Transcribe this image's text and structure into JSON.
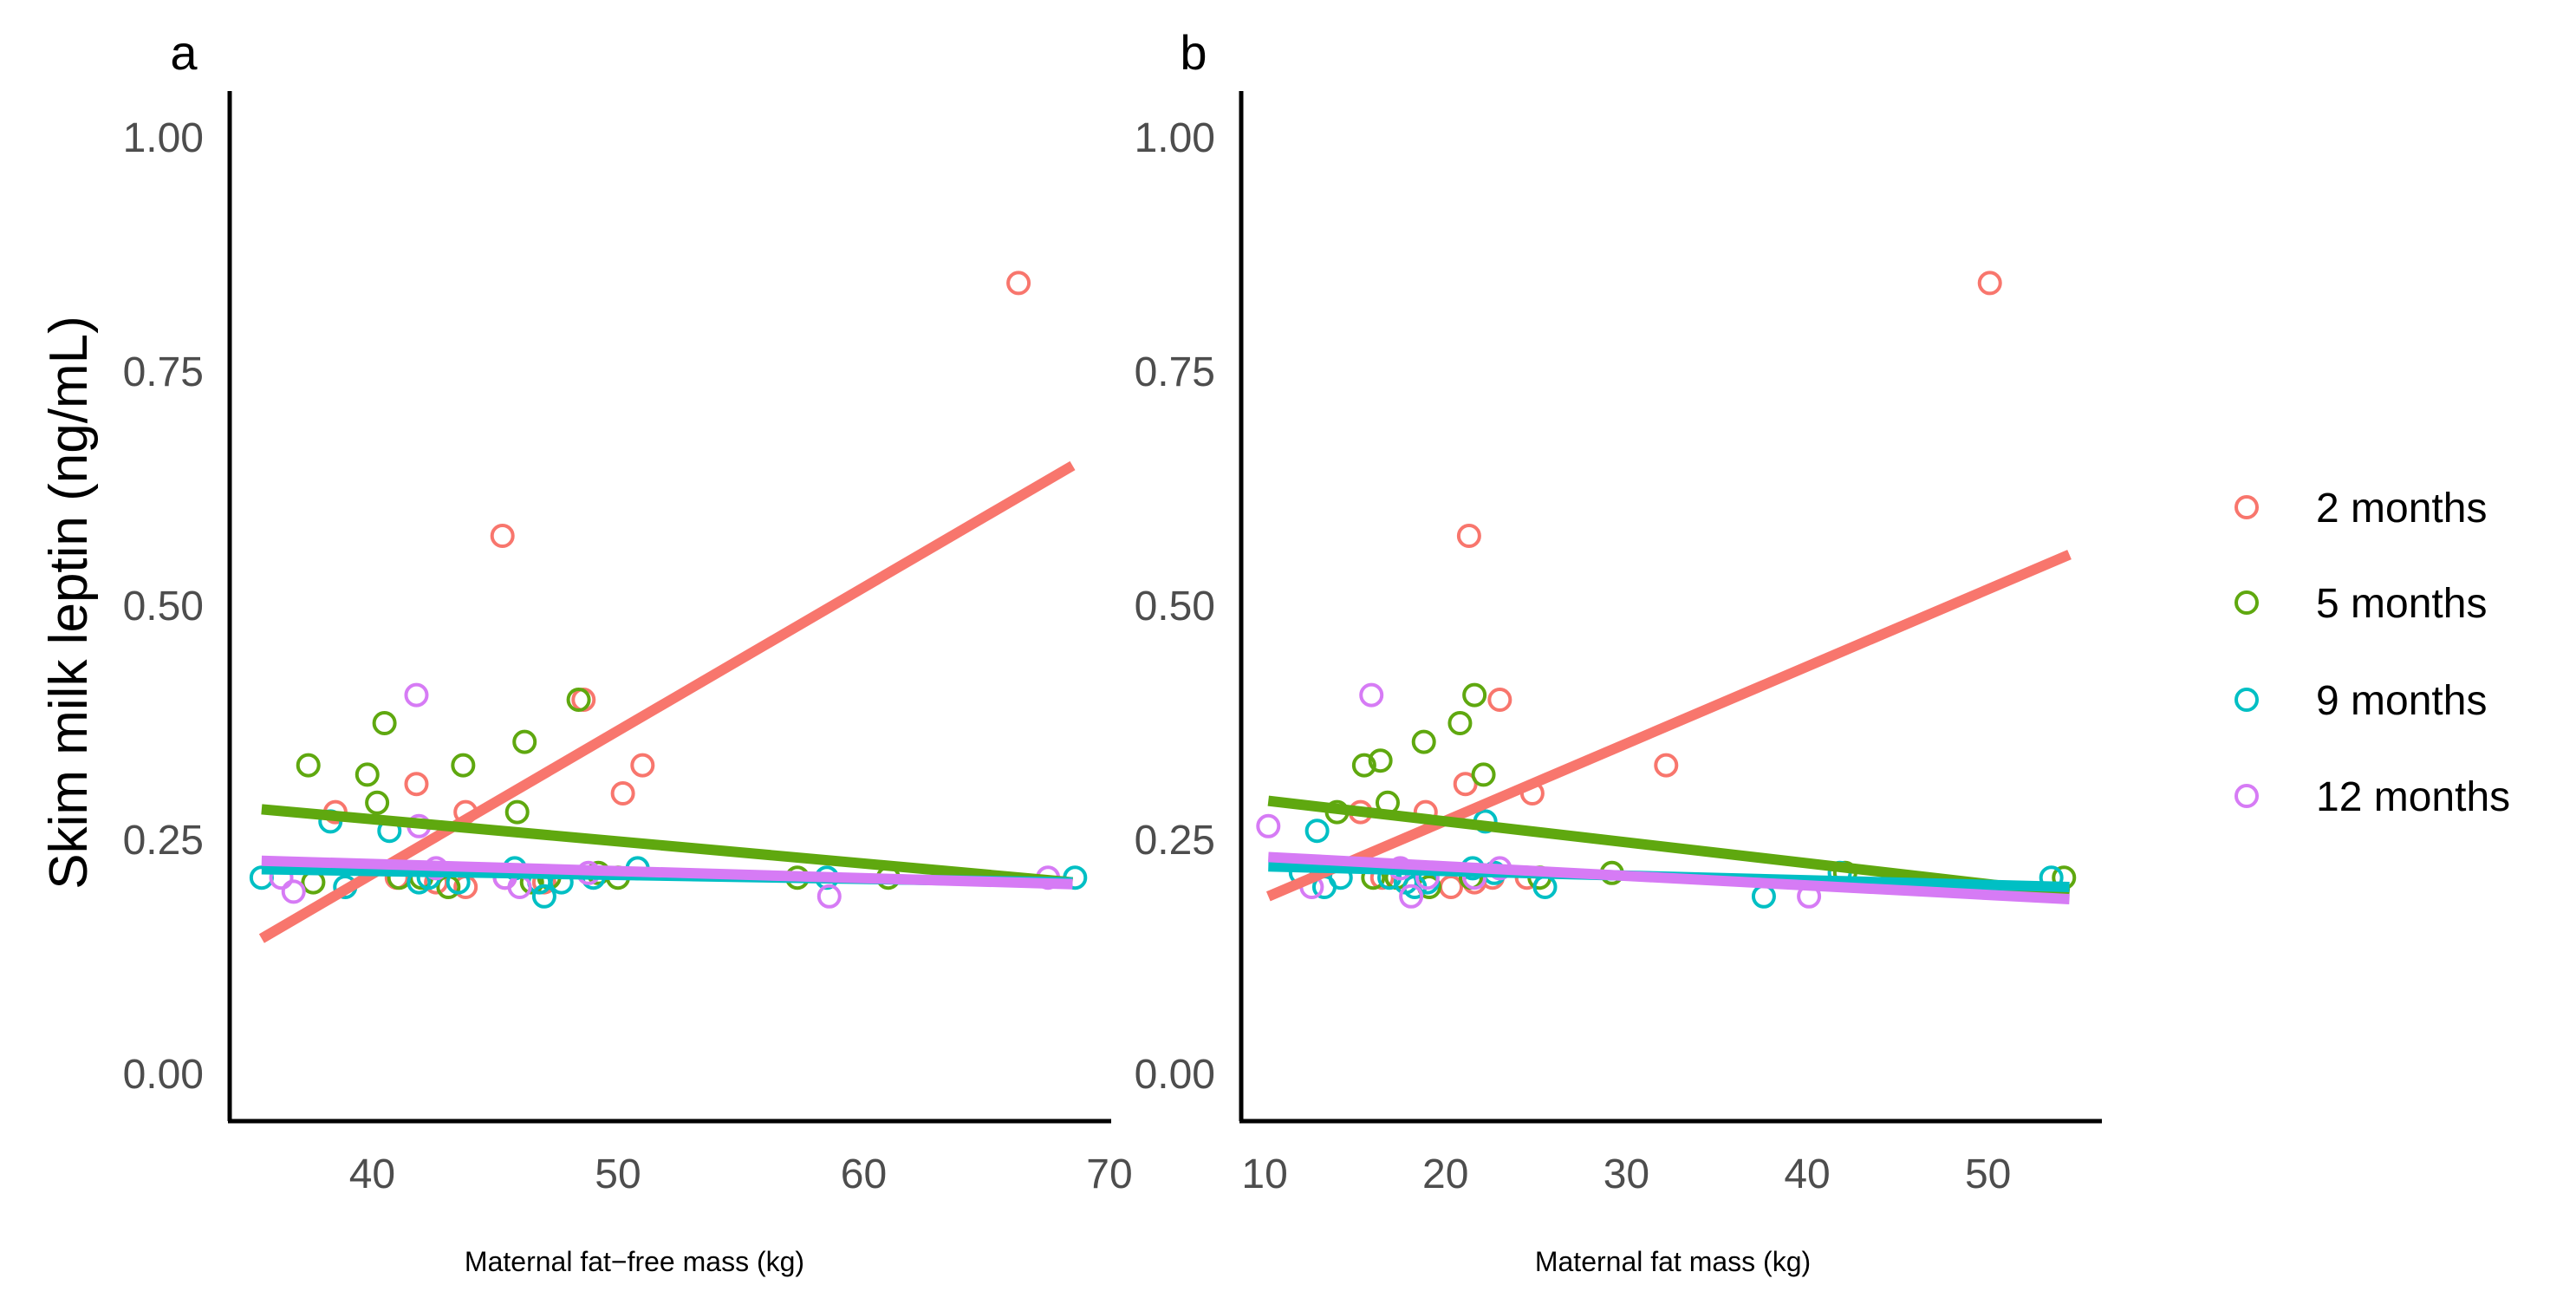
{
  "y_axis_label": "Skim milk leptin (ng/mL)",
  "legend": [
    {
      "label": "2 months",
      "color": "#F8766D"
    },
    {
      "label": "5 months",
      "color": "#5FA80F"
    },
    {
      "label": "9 months",
      "color": "#00BFC4"
    },
    {
      "label": "12 months",
      "color": "#D67BF5"
    }
  ],
  "chart_data": [
    {
      "type": "scatter",
      "panel_label": "a",
      "xlabel": "Maternal fat−free mass (kg)",
      "ylabel": "Skim milk leptin (ng/mL)",
      "xlim": [
        34.2,
        70
      ],
      "ylim": [
        -0.05,
        1.05
      ],
      "xticks": [
        40,
        50,
        60,
        70
      ],
      "yticks": [
        0,
        0.25,
        0.5,
        0.75,
        1.0
      ],
      "series": [
        {
          "name": "2 months",
          "points": [
            [
              38.5,
              0.28
            ],
            [
              41.8,
              0.31
            ],
            [
              43.8,
              0.28
            ],
            [
              45.3,
              0.575
            ],
            [
              48.6,
              0.4
            ],
            [
              50.2,
              0.3
            ],
            [
              51.0,
              0.33
            ],
            [
              66.3,
              0.845
            ],
            [
              41.0,
              0.21
            ],
            [
              42.6,
              0.205
            ],
            [
              43.8,
              0.2
            ],
            [
              45.4,
              0.21
            ],
            [
              47.0,
              0.205
            ]
          ],
          "trend": [
            [
              35.5,
              0.145
            ],
            [
              68.5,
              0.65
            ]
          ]
        },
        {
          "name": "5 months",
          "points": [
            [
              37.4,
              0.33
            ],
            [
              37.6,
              0.205
            ],
            [
              39.8,
              0.32
            ],
            [
              40.2,
              0.29
            ],
            [
              40.5,
              0.375
            ],
            [
              41.1,
              0.21
            ],
            [
              42.0,
              0.21
            ],
            [
              43.1,
              0.2
            ],
            [
              43.7,
              0.33
            ],
            [
              45.9,
              0.28
            ],
            [
              46.2,
              0.355
            ],
            [
              46.5,
              0.205
            ],
            [
              47.2,
              0.21
            ],
            [
              48.4,
              0.4
            ],
            [
              49.2,
              0.215
            ],
            [
              50.0,
              0.21
            ],
            [
              57.3,
              0.21
            ],
            [
              61.0,
              0.21
            ]
          ],
          "trend": [
            [
              35.5,
              0.283
            ],
            [
              68.5,
              0.205
            ]
          ]
        },
        {
          "name": "9 months",
          "points": [
            [
              35.5,
              0.21
            ],
            [
              38.3,
              0.27
            ],
            [
              38.9,
              0.2
            ],
            [
              40.7,
              0.26
            ],
            [
              41.9,
              0.205
            ],
            [
              42.3,
              0.21
            ],
            [
              43.5,
              0.205
            ],
            [
              45.8,
              0.22
            ],
            [
              46.8,
              0.205
            ],
            [
              47.0,
              0.19
            ],
            [
              47.7,
              0.205
            ],
            [
              49.0,
              0.21
            ],
            [
              50.8,
              0.22
            ],
            [
              58.5,
              0.21
            ],
            [
              68.6,
              0.21
            ]
          ],
          "trend": [
            [
              35.5,
              0.219
            ],
            [
              68.5,
              0.205
            ]
          ]
        },
        {
          "name": "12 months",
          "points": [
            [
              36.3,
              0.21
            ],
            [
              36.8,
              0.195
            ],
            [
              41.8,
              0.405
            ],
            [
              41.9,
              0.265
            ],
            [
              42.6,
              0.22
            ],
            [
              45.4,
              0.21
            ],
            [
              46.0,
              0.2
            ],
            [
              48.8,
              0.215
            ],
            [
              58.6,
              0.19
            ],
            [
              67.5,
              0.21
            ]
          ],
          "trend": [
            [
              35.5,
              0.228
            ],
            [
              68.5,
              0.203
            ]
          ]
        }
      ]
    },
    {
      "type": "scatter",
      "panel_label": "b",
      "xlabel": "Maternal fat mass (kg)",
      "ylabel": "Skim milk leptin (ng/mL)",
      "xlim": [
        8.7,
        56.2
      ],
      "ylim": [
        -0.05,
        1.05
      ],
      "xticks": [
        10,
        20,
        30,
        40,
        50
      ],
      "yticks": [
        0,
        0.25,
        0.5,
        0.75,
        1.0
      ],
      "series": [
        {
          "name": "2 months",
          "points": [
            [
              15.3,
              0.28
            ],
            [
              18.9,
              0.28
            ],
            [
              20.3,
              0.2
            ],
            [
              21.1,
              0.31
            ],
            [
              21.3,
              0.575
            ],
            [
              23.0,
              0.4
            ],
            [
              24.8,
              0.3
            ],
            [
              32.2,
              0.33
            ],
            [
              50.1,
              0.845
            ],
            [
              16.5,
              0.21
            ],
            [
              21.6,
              0.205
            ],
            [
              22.6,
              0.21
            ],
            [
              24.5,
              0.21
            ]
          ],
          "trend": [
            [
              10.2,
              0.19
            ],
            [
              54.5,
              0.555
            ]
          ]
        },
        {
          "name": "5 months",
          "points": [
            [
              14.0,
              0.28
            ],
            [
              15.5,
              0.33
            ],
            [
              16.4,
              0.335
            ],
            [
              16.8,
              0.29
            ],
            [
              18.8,
              0.355
            ],
            [
              20.8,
              0.375
            ],
            [
              21.6,
              0.405
            ],
            [
              22.1,
              0.32
            ],
            [
              16.0,
              0.21
            ],
            [
              17.3,
              0.21
            ],
            [
              19.1,
              0.2
            ],
            [
              21.4,
              0.21
            ],
            [
              25.2,
              0.21
            ],
            [
              29.2,
              0.215
            ],
            [
              42.1,
              0.215
            ],
            [
              54.2,
              0.21
            ]
          ],
          "trend": [
            [
              10.2,
              0.292
            ],
            [
              54.5,
              0.193
            ]
          ]
        },
        {
          "name": "9 months",
          "points": [
            [
              12.0,
              0.215
            ],
            [
              12.9,
              0.26
            ],
            [
              13.3,
              0.2
            ],
            [
              14.2,
              0.21
            ],
            [
              16.9,
              0.21
            ],
            [
              17.8,
              0.205
            ],
            [
              18.3,
              0.2
            ],
            [
              19.0,
              0.205
            ],
            [
              21.5,
              0.22
            ],
            [
              22.2,
              0.27
            ],
            [
              22.7,
              0.215
            ],
            [
              25.5,
              0.2
            ],
            [
              37.6,
              0.19
            ],
            [
              41.8,
              0.215
            ],
            [
              53.5,
              0.21
            ]
          ],
          "trend": [
            [
              10.2,
              0.222
            ],
            [
              54.5,
              0.2
            ]
          ]
        },
        {
          "name": "12 months",
          "points": [
            [
              10.2,
              0.265
            ],
            [
              12.6,
              0.2
            ],
            [
              15.9,
              0.405
            ],
            [
              17.5,
              0.22
            ],
            [
              18.1,
              0.19
            ],
            [
              19.0,
              0.21
            ],
            [
              21.6,
              0.21
            ],
            [
              23.0,
              0.22
            ],
            [
              40.1,
              0.19
            ]
          ],
          "trend": [
            [
              10.2,
              0.232
            ],
            [
              54.5,
              0.187
            ]
          ]
        }
      ]
    }
  ]
}
